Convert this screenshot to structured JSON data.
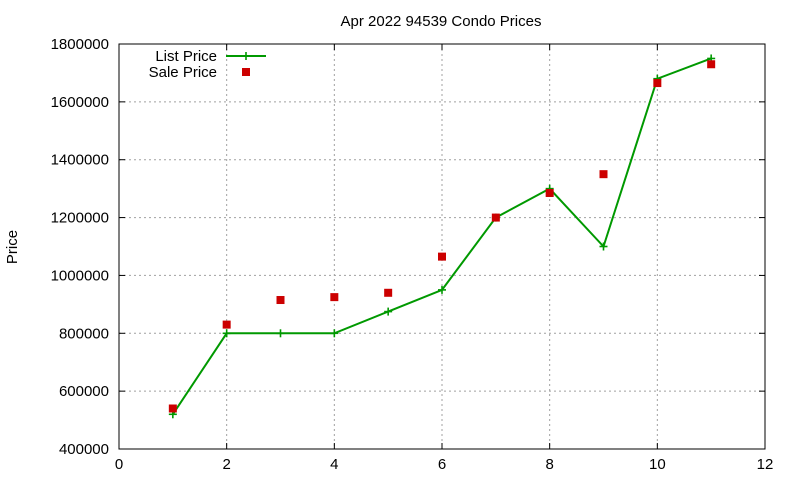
{
  "chart_data": {
    "type": "line",
    "title": "Apr 2022 94539 Condo Prices",
    "xlabel": "",
    "ylabel": "Price",
    "xlim": [
      0,
      12
    ],
    "ylim": [
      400000,
      1800000
    ],
    "x_ticks": [
      "0",
      "2",
      "4",
      "6",
      "8",
      "10",
      "12"
    ],
    "y_ticks": [
      "400000",
      "600000",
      "800000",
      "1000000",
      "1200000",
      "1400000",
      "1600000",
      "1800000"
    ],
    "grid": true,
    "legend_position": "top-left",
    "series": [
      {
        "name": "List Price",
        "style": "line-with-plus-markers",
        "color": "#009900",
        "x": [
          1,
          2,
          3,
          4,
          5,
          6,
          7,
          8,
          9,
          10,
          11
        ],
        "y": [
          520000,
          800000,
          800000,
          800000,
          875000,
          950000,
          1200000,
          1300000,
          1100000,
          1680000,
          1750000
        ]
      },
      {
        "name": "Sale Price",
        "style": "square-markers",
        "color": "#cc0000",
        "x": [
          1,
          2,
          3,
          4,
          5,
          6,
          7,
          8,
          9,
          10,
          11
        ],
        "y": [
          540000,
          830000,
          915000,
          925000,
          940000,
          1065000,
          1200000,
          1285000,
          1350000,
          1665000,
          1730000
        ]
      }
    ]
  }
}
